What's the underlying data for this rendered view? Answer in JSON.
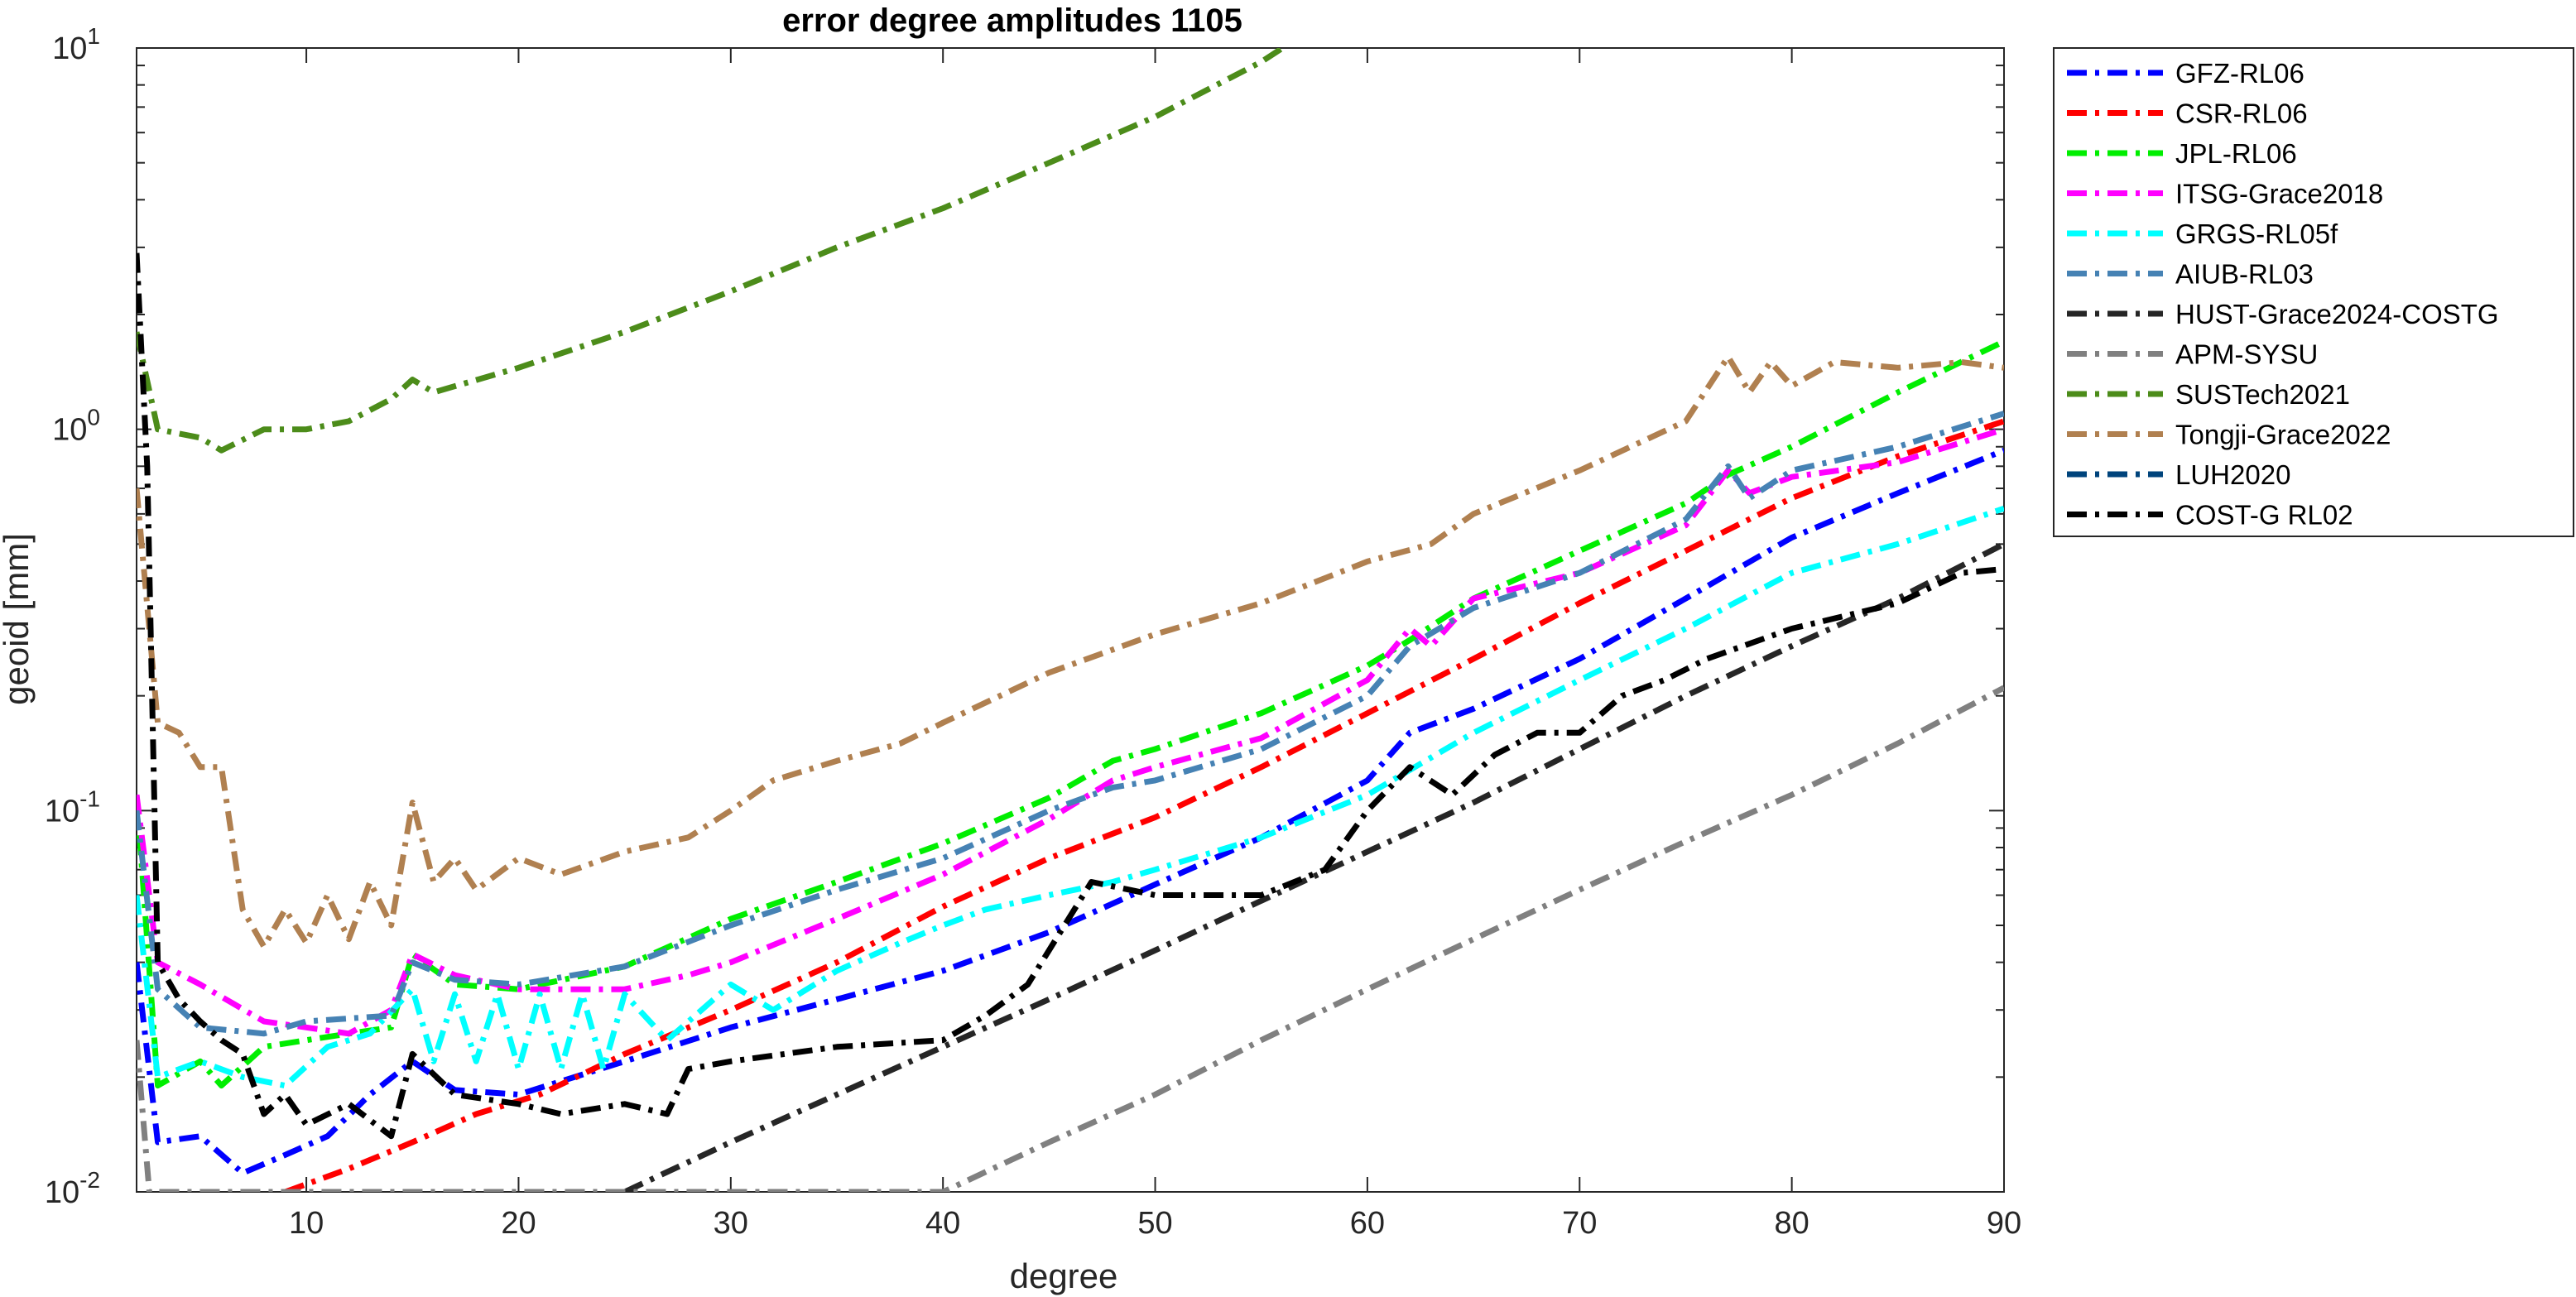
{
  "chart_data": {
    "type": "line",
    "title": "error degree amplitudes 1105",
    "xlabel": "degree",
    "ylabel": "geoid [mm]",
    "xlim": [
      2,
      90
    ],
    "ylim": [
      0.01,
      10
    ],
    "yscale": "log",
    "grid": false,
    "legend_position": "outside-right",
    "xticks": [
      10,
      20,
      30,
      40,
      50,
      60,
      70,
      80,
      90
    ],
    "yticks": [
      {
        "value": 0.01,
        "base": "10",
        "exp": "-2"
      },
      {
        "value": 0.1,
        "base": "10",
        "exp": "-1"
      },
      {
        "value": 1,
        "base": "10",
        "exp": "0"
      },
      {
        "value": 10,
        "base": "10",
        "exp": "1"
      }
    ],
    "series": [
      {
        "name": "GFZ-RL06",
        "color": "#0000ff",
        "points": [
          [
            2,
            0.04
          ],
          [
            3,
            0.0135
          ],
          [
            5,
            0.014
          ],
          [
            7,
            0.0112
          ],
          [
            9,
            0.0125
          ],
          [
            11,
            0.014
          ],
          [
            13,
            0.018
          ],
          [
            15,
            0.022
          ],
          [
            17,
            0.0185
          ],
          [
            20,
            0.018
          ],
          [
            25,
            0.022
          ],
          [
            30,
            0.027
          ],
          [
            35,
            0.032
          ],
          [
            40,
            0.038
          ],
          [
            45,
            0.048
          ],
          [
            50,
            0.064
          ],
          [
            55,
            0.085
          ],
          [
            60,
            0.12
          ],
          [
            62,
            0.16
          ],
          [
            65,
            0.185
          ],
          [
            70,
            0.25
          ],
          [
            75,
            0.36
          ],
          [
            80,
            0.52
          ],
          [
            85,
            0.68
          ],
          [
            90,
            0.88
          ]
        ]
      },
      {
        "name": "CSR-RL06",
        "color": "#ff0000",
        "points": [
          [
            9,
            0.01
          ],
          [
            12,
            0.0115
          ],
          [
            15,
            0.0135
          ],
          [
            18,
            0.016
          ],
          [
            21,
            0.018
          ],
          [
            25,
            0.023
          ],
          [
            30,
            0.03
          ],
          [
            35,
            0.04
          ],
          [
            40,
            0.056
          ],
          [
            45,
            0.075
          ],
          [
            50,
            0.096
          ],
          [
            55,
            0.13
          ],
          [
            60,
            0.18
          ],
          [
            65,
            0.25
          ],
          [
            70,
            0.35
          ],
          [
            75,
            0.48
          ],
          [
            80,
            0.66
          ],
          [
            85,
            0.85
          ],
          [
            90,
            1.05
          ]
        ]
      },
      {
        "name": "JPL-RL06",
        "color": "#00ee00",
        "points": [
          [
            2,
            0.11
          ],
          [
            3,
            0.019
          ],
          [
            5,
            0.022
          ],
          [
            6,
            0.019
          ],
          [
            8,
            0.024
          ],
          [
            10,
            0.025
          ],
          [
            12,
            0.026
          ],
          [
            14,
            0.027
          ],
          [
            15,
            0.042
          ],
          [
            17,
            0.035
          ],
          [
            20,
            0.034
          ],
          [
            25,
            0.039
          ],
          [
            30,
            0.052
          ],
          [
            35,
            0.065
          ],
          [
            40,
            0.082
          ],
          [
            45,
            0.108
          ],
          [
            48,
            0.135
          ],
          [
            50,
            0.145
          ],
          [
            55,
            0.18
          ],
          [
            60,
            0.24
          ],
          [
            62,
            0.28
          ],
          [
            65,
            0.36
          ],
          [
            70,
            0.48
          ],
          [
            75,
            0.64
          ],
          [
            77,
            0.76
          ],
          [
            80,
            0.9
          ],
          [
            85,
            1.25
          ],
          [
            90,
            1.7
          ]
        ]
      },
      {
        "name": "ITSG-Grace2018",
        "color": "#ff00ff",
        "points": [
          [
            2,
            0.11
          ],
          [
            3,
            0.04
          ],
          [
            5,
            0.035
          ],
          [
            8,
            0.028
          ],
          [
            10,
            0.027
          ],
          [
            12,
            0.026
          ],
          [
            14,
            0.03
          ],
          [
            15,
            0.042
          ],
          [
            17,
            0.037
          ],
          [
            20,
            0.034
          ],
          [
            25,
            0.034
          ],
          [
            28,
            0.037
          ],
          [
            30,
            0.04
          ],
          [
            35,
            0.052
          ],
          [
            40,
            0.068
          ],
          [
            45,
            0.095
          ],
          [
            48,
            0.12
          ],
          [
            50,
            0.13
          ],
          [
            55,
            0.155
          ],
          [
            60,
            0.22
          ],
          [
            62,
            0.3
          ],
          [
            63,
            0.27
          ],
          [
            65,
            0.36
          ],
          [
            70,
            0.42
          ],
          [
            75,
            0.56
          ],
          [
            77,
            0.78
          ],
          [
            78,
            0.68
          ],
          [
            80,
            0.75
          ],
          [
            85,
            0.82
          ],
          [
            90,
            1.0
          ]
        ]
      },
      {
        "name": "GRGS-RL05f",
        "color": "#00ffff",
        "points": [
          [
            2,
            0.06
          ],
          [
            3,
            0.02
          ],
          [
            5,
            0.022
          ],
          [
            7,
            0.02
          ],
          [
            9,
            0.019
          ],
          [
            11,
            0.024
          ],
          [
            13,
            0.026
          ],
          [
            15,
            0.034
          ],
          [
            16,
            0.022
          ],
          [
            17,
            0.033
          ],
          [
            18,
            0.022
          ],
          [
            19,
            0.033
          ],
          [
            20,
            0.021
          ],
          [
            21,
            0.033
          ],
          [
            22,
            0.021
          ],
          [
            23,
            0.033
          ],
          [
            24,
            0.021
          ],
          [
            25,
            0.033
          ],
          [
            27,
            0.025
          ],
          [
            30,
            0.035
          ],
          [
            32,
            0.03
          ],
          [
            35,
            0.038
          ],
          [
            38,
            0.045
          ],
          [
            40,
            0.05
          ],
          [
            42,
            0.055
          ],
          [
            45,
            0.06
          ],
          [
            48,
            0.065
          ],
          [
            50,
            0.07
          ],
          [
            55,
            0.085
          ],
          [
            60,
            0.11
          ],
          [
            65,
            0.16
          ],
          [
            70,
            0.22
          ],
          [
            75,
            0.3
          ],
          [
            80,
            0.42
          ],
          [
            85,
            0.5
          ],
          [
            90,
            0.62
          ]
        ]
      },
      {
        "name": "AIUB-RL03",
        "color": "#4682b4",
        "points": [
          [
            2,
            0.1
          ],
          [
            3,
            0.034
          ],
          [
            5,
            0.027
          ],
          [
            8,
            0.026
          ],
          [
            10,
            0.028
          ],
          [
            14,
            0.029
          ],
          [
            15,
            0.04
          ],
          [
            17,
            0.036
          ],
          [
            20,
            0.035
          ],
          [
            25,
            0.039
          ],
          [
            30,
            0.05
          ],
          [
            35,
            0.062
          ],
          [
            40,
            0.075
          ],
          [
            45,
            0.1
          ],
          [
            48,
            0.115
          ],
          [
            50,
            0.12
          ],
          [
            55,
            0.145
          ],
          [
            60,
            0.2
          ],
          [
            62,
            0.27
          ],
          [
            65,
            0.34
          ],
          [
            70,
            0.42
          ],
          [
            75,
            0.58
          ],
          [
            77,
            0.8
          ],
          [
            78,
            0.66
          ],
          [
            80,
            0.78
          ],
          [
            85,
            0.9
          ],
          [
            90,
            1.1
          ]
        ]
      },
      {
        "name": "HUST-Grace2024-COSTG",
        "color": "#262626",
        "points": [
          [
            25,
            0.01
          ],
          [
            30,
            0.0135
          ],
          [
            35,
            0.018
          ],
          [
            40,
            0.024
          ],
          [
            45,
            0.032
          ],
          [
            50,
            0.043
          ],
          [
            55,
            0.058
          ],
          [
            60,
            0.078
          ],
          [
            65,
            0.105
          ],
          [
            70,
            0.145
          ],
          [
            75,
            0.2
          ],
          [
            80,
            0.27
          ],
          [
            85,
            0.36
          ],
          [
            90,
            0.5
          ]
        ]
      },
      {
        "name": "APM-SYSU",
        "color": "#808080",
        "points": [
          [
            2,
            0.025
          ],
          [
            2.6,
            0.01
          ],
          [
            40,
            0.01
          ],
          [
            45,
            0.0135
          ],
          [
            50,
            0.018
          ],
          [
            55,
            0.025
          ],
          [
            60,
            0.034
          ],
          [
            65,
            0.046
          ],
          [
            70,
            0.062
          ],
          [
            75,
            0.083
          ],
          [
            80,
            0.11
          ],
          [
            85,
            0.15
          ],
          [
            90,
            0.21
          ]
        ]
      },
      {
        "name": "SUSTech2021",
        "color": "#4c8c1a",
        "points": [
          [
            2,
            1.8
          ],
          [
            3,
            1.0
          ],
          [
            5,
            0.95
          ],
          [
            6,
            0.88
          ],
          [
            8,
            1.0
          ],
          [
            10,
            1.0
          ],
          [
            12,
            1.05
          ],
          [
            14,
            1.2
          ],
          [
            15,
            1.35
          ],
          [
            16,
            1.25
          ],
          [
            20,
            1.45
          ],
          [
            25,
            1.8
          ],
          [
            30,
            2.3
          ],
          [
            35,
            3.0
          ],
          [
            40,
            3.8
          ],
          [
            45,
            5.0
          ],
          [
            50,
            6.6
          ],
          [
            55,
            9.2
          ],
          [
            56,
            10
          ]
        ]
      },
      {
        "name": "Tongji-Grace2022",
        "color": "#b08050",
        "points": [
          [
            2,
            0.7
          ],
          [
            3,
            0.17
          ],
          [
            4,
            0.16
          ],
          [
            5,
            0.13
          ],
          [
            6,
            0.13
          ],
          [
            7,
            0.055
          ],
          [
            8,
            0.044
          ],
          [
            9,
            0.055
          ],
          [
            10,
            0.045
          ],
          [
            11,
            0.06
          ],
          [
            12,
            0.046
          ],
          [
            13,
            0.065
          ],
          [
            14,
            0.05
          ],
          [
            15,
            0.105
          ],
          [
            16,
            0.065
          ],
          [
            17,
            0.075
          ],
          [
            18,
            0.062
          ],
          [
            20,
            0.075
          ],
          [
            22,
            0.068
          ],
          [
            25,
            0.078
          ],
          [
            28,
            0.085
          ],
          [
            30,
            0.1
          ],
          [
            32,
            0.12
          ],
          [
            35,
            0.135
          ],
          [
            38,
            0.15
          ],
          [
            40,
            0.17
          ],
          [
            45,
            0.23
          ],
          [
            50,
            0.29
          ],
          [
            55,
            0.35
          ],
          [
            60,
            0.45
          ],
          [
            63,
            0.5
          ],
          [
            65,
            0.6
          ],
          [
            70,
            0.78
          ],
          [
            75,
            1.05
          ],
          [
            77,
            1.55
          ],
          [
            78,
            1.25
          ],
          [
            79,
            1.5
          ],
          [
            80,
            1.3
          ],
          [
            82,
            1.5
          ],
          [
            85,
            1.45
          ],
          [
            88,
            1.5
          ],
          [
            90,
            1.45
          ]
        ]
      },
      {
        "name": "LUH2020",
        "color": "#00447c",
        "points": []
      },
      {
        "name": "COST-G RL02",
        "color": "#000000",
        "points": [
          [
            2,
            2.9
          ],
          [
            2.5,
            0.8
          ],
          [
            3,
            0.04
          ],
          [
            4,
            0.032
          ],
          [
            5,
            0.028
          ],
          [
            6,
            0.025
          ],
          [
            7,
            0.023
          ],
          [
            8,
            0.016
          ],
          [
            9,
            0.018
          ],
          [
            10,
            0.015
          ],
          [
            12,
            0.017
          ],
          [
            14,
            0.014
          ],
          [
            15,
            0.023
          ],
          [
            17,
            0.018
          ],
          [
            20,
            0.017
          ],
          [
            22,
            0.016
          ],
          [
            25,
            0.017
          ],
          [
            27,
            0.016
          ],
          [
            28,
            0.021
          ],
          [
            30,
            0.022
          ],
          [
            35,
            0.024
          ],
          [
            40,
            0.025
          ],
          [
            42,
            0.029
          ],
          [
            44,
            0.035
          ],
          [
            47,
            0.065
          ],
          [
            50,
            0.06
          ],
          [
            55,
            0.06
          ],
          [
            58,
            0.07
          ],
          [
            60,
            0.1
          ],
          [
            62,
            0.13
          ],
          [
            64,
            0.11
          ],
          [
            66,
            0.14
          ],
          [
            68,
            0.16
          ],
          [
            70,
            0.16
          ],
          [
            72,
            0.2
          ],
          [
            74,
            0.22
          ],
          [
            76,
            0.25
          ],
          [
            80,
            0.3
          ],
          [
            85,
            0.35
          ],
          [
            88,
            0.42
          ],
          [
            90,
            0.43
          ]
        ]
      }
    ]
  }
}
